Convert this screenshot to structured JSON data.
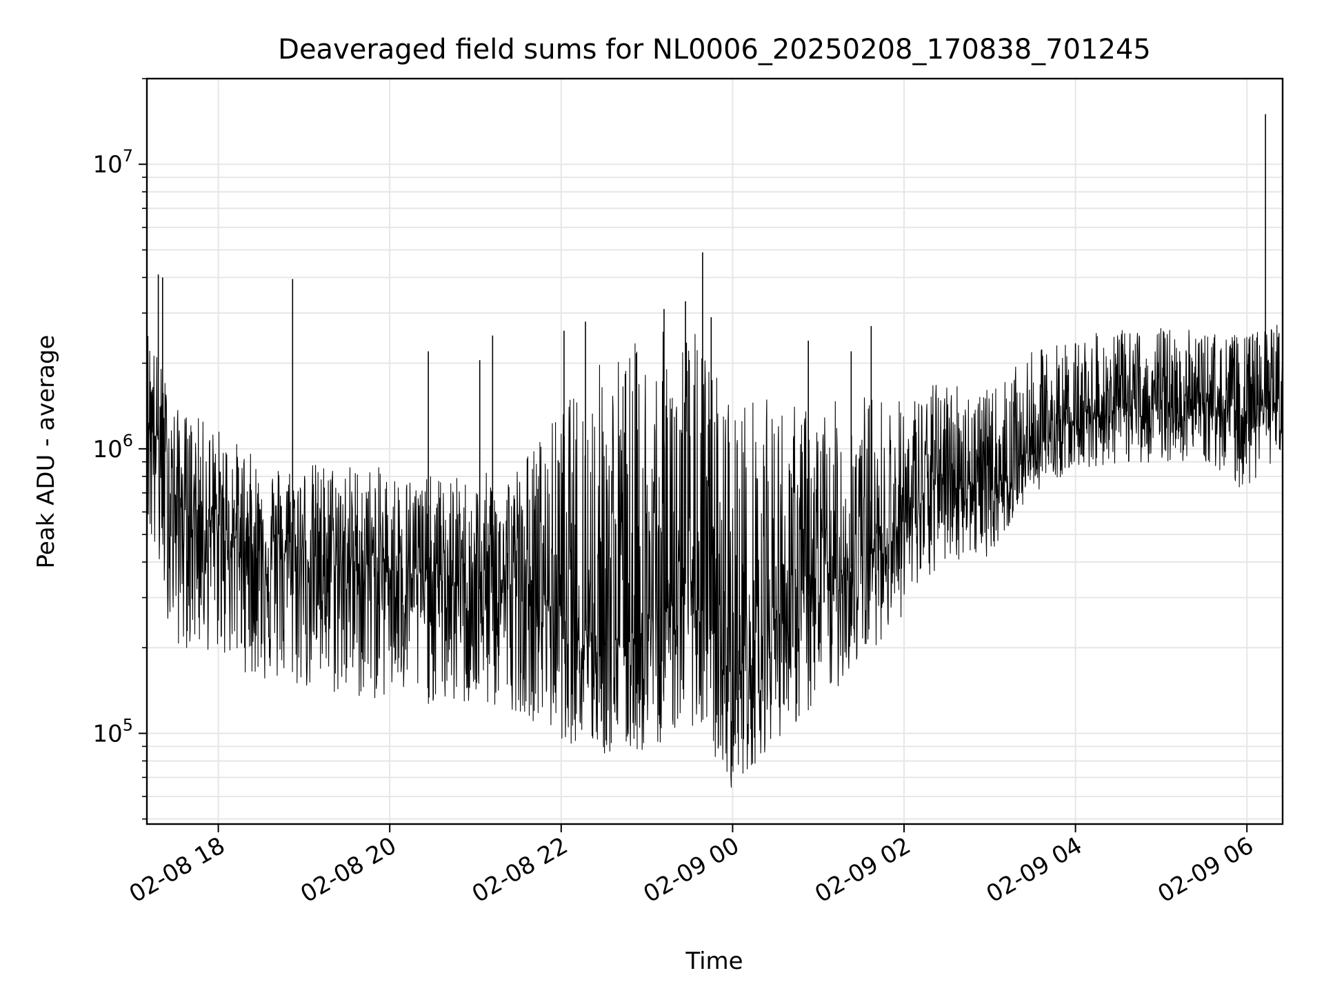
{
  "chart_data": {
    "type": "line",
    "title": "Deaveraged field sums for NL0006_20250208_170838_701245",
    "xlabel": "Time",
    "ylabel": "Peak ADU - average",
    "yscale": "log",
    "ylim": [
      48000,
      20000000
    ],
    "xlim": [
      "2025-02-08 17:10",
      "2025-02-09 06:25"
    ],
    "x_ticks": [
      {
        "t": "2025-02-08 18:00",
        "label": "02-08 18"
      },
      {
        "t": "2025-02-08 20:00",
        "label": "02-08 20"
      },
      {
        "t": "2025-02-08 22:00",
        "label": "02-08 22"
      },
      {
        "t": "2025-02-09 00:00",
        "label": "02-09 00"
      },
      {
        "t": "2025-02-09 02:00",
        "label": "02-09 02"
      },
      {
        "t": "2025-02-09 04:00",
        "label": "02-09 04"
      },
      {
        "t": "2025-02-09 06:00",
        "label": "02-09 06"
      }
    ],
    "y_ticks": [
      {
        "value": 100000,
        "base": "10",
        "exp": "5"
      },
      {
        "value": 1000000,
        "base": "10",
        "exp": "6"
      },
      {
        "value": 10000000,
        "base": "10",
        "exp": "7"
      }
    ],
    "grid": true,
    "line_color": "#000000",
    "series": [
      {
        "x": [
          "2025-02-08 17:10",
          "2025-02-08 17:30",
          "2025-02-08 18:00",
          "2025-02-08 18:30",
          "2025-02-08 19:00",
          "2025-02-08 19:30",
          "2025-02-08 20:00",
          "2025-02-08 20:30",
          "2025-02-08 21:00",
          "2025-02-08 21:30",
          "2025-02-08 22:00",
          "2025-02-08 22:30",
          "2025-02-08 23:00",
          "2025-02-08 23:30",
          "2025-02-09 00:00",
          "2025-02-09 00:30",
          "2025-02-09 01:00",
          "2025-02-09 01:30",
          "2025-02-09 02:00",
          "2025-02-09 02:30",
          "2025-02-09 03:00",
          "2025-02-09 03:30",
          "2025-02-09 04:00",
          "2025-02-09 04:30",
          "2025-02-09 05:00",
          "2025-02-09 05:30",
          "2025-02-09 06:00",
          "2025-02-09 06:25"
        ],
        "center": [
          1500000,
          650000,
          520000,
          450000,
          420000,
          400000,
          380000,
          350000,
          320000,
          340000,
          280000,
          220000,
          230000,
          350000,
          150000,
          260000,
          320000,
          400000,
          550000,
          850000,
          700000,
          1000000,
          1300000,
          1400000,
          1400000,
          1450000,
          1300000,
          1500000
        ],
        "low": [
          480000,
          200000,
          190000,
          150000,
          140000,
          130000,
          130000,
          125000,
          120000,
          120000,
          95000,
          82000,
          85000,
          110000,
          63000,
          95000,
          120000,
          180000,
          260000,
          400000,
          420000,
          700000,
          850000,
          880000,
          900000,
          900000,
          700000,
          1000000
        ],
        "high": [
          2800000,
          1400000,
          1200000,
          900000,
          900000,
          900000,
          850000,
          800000,
          800000,
          900000,
          1400000,
          2200000,
          2500000,
          2800000,
          1600000,
          1500000,
          1400000,
          1600000,
          1500000,
          1800000,
          1600000,
          2200000,
          2500000,
          2600000,
          2700000,
          2600000,
          2500000,
          2900000
        ]
      }
    ],
    "spikes": [
      {
        "t": "2025-02-08 17:18",
        "value": 4100000
      },
      {
        "t": "2025-02-08 17:21",
        "value": 4000000
      },
      {
        "t": "2025-02-08 18:52",
        "value": 3950000
      },
      {
        "t": "2025-02-08 20:27",
        "value": 2200000
      },
      {
        "t": "2025-02-08 21:03",
        "value": 2050000
      },
      {
        "t": "2025-02-08 21:12",
        "value": 2500000
      },
      {
        "t": "2025-02-08 22:02",
        "value": 2600000
      },
      {
        "t": "2025-02-08 22:17",
        "value": 2800000
      },
      {
        "t": "2025-02-08 23:12",
        "value": 3100000
      },
      {
        "t": "2025-02-08 23:27",
        "value": 3300000
      },
      {
        "t": "2025-02-08 23:39",
        "value": 4900000
      },
      {
        "t": "2025-02-08 23:45",
        "value": 2900000
      },
      {
        "t": "2025-02-09 00:53",
        "value": 2400000
      },
      {
        "t": "2025-02-09 01:23",
        "value": 2200000
      },
      {
        "t": "2025-02-09 01:37",
        "value": 2700000
      },
      {
        "t": "2025-02-09 06:13",
        "value": 15000000
      }
    ]
  }
}
